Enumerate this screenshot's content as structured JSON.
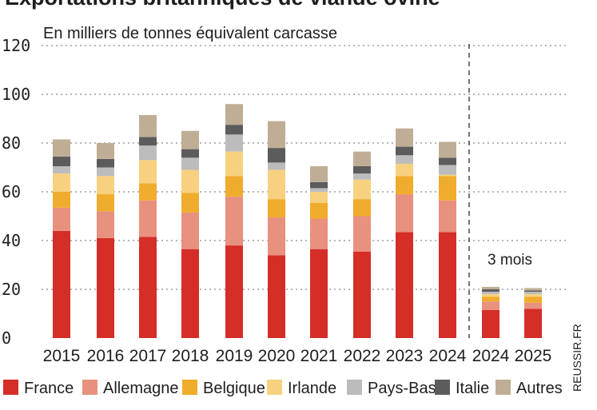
{
  "chart_data": {
    "type": "bar",
    "stacked": true,
    "title": "Exportations britanniques de viande ovine",
    "subtitle": "En milliers de tonnes équivalent carcasse",
    "categories": [
      "2015",
      "2016",
      "2017",
      "2018",
      "2019",
      "2020",
      "2021",
      "2022",
      "2023",
      "2024",
      "2024",
      "2025"
    ],
    "ylim": [
      0,
      120
    ],
    "yticks": [
      0,
      20,
      40,
      60,
      80,
      100,
      120
    ],
    "grid": true,
    "legend_position": "bottom",
    "annotation": "3 mois",
    "credit": "REUSSIR.FR",
    "series": [
      {
        "name": "France",
        "color": "#d42e27",
        "values": [
          44,
          41,
          41.5,
          36.5,
          38,
          34,
          36.5,
          35.5,
          43.5,
          43.5,
          11.5,
          12
        ]
      },
      {
        "name": "Allemagne",
        "color": "#e8917f",
        "values": [
          9.5,
          11,
          15,
          15,
          20,
          15.5,
          12.5,
          14.5,
          15.5,
          13,
          3.5,
          2.5
        ]
      },
      {
        "name": "Belgique",
        "color": "#f0ac2c",
        "values": [
          6.5,
          7,
          7,
          8,
          8.5,
          7.5,
          6.5,
          7,
          7.5,
          10,
          2,
          2.5
        ]
      },
      {
        "name": "Irlande",
        "color": "#f7d17f",
        "values": [
          7.5,
          7.5,
          9.5,
          9.5,
          10,
          12,
          4.5,
          8,
          5,
          0.5,
          1,
          1
        ]
      },
      {
        "name": "Pays-Bas",
        "color": "#bcbcbc",
        "values": [
          3,
          3.5,
          6,
          5,
          7,
          3,
          1.5,
          2.5,
          3.5,
          4,
          1,
          1
        ]
      },
      {
        "name": "Italie",
        "color": "#5c5c5c",
        "values": [
          4,
          3.5,
          3.5,
          3.5,
          4,
          6,
          2.5,
          3,
          3.5,
          3,
          1,
          0.5
        ]
      },
      {
        "name": "Autres",
        "color": "#bfae95",
        "values": [
          7,
          6.5,
          9,
          7.5,
          8.5,
          11,
          6.5,
          6,
          7.5,
          6.5,
          1,
          1
        ]
      }
    ]
  }
}
